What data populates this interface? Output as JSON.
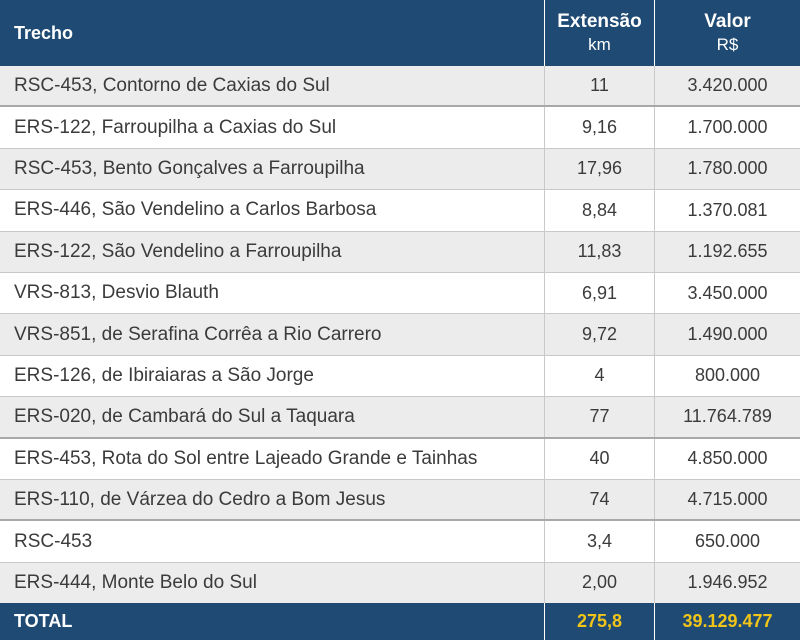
{
  "table": {
    "headers": {
      "trecho": "Trecho",
      "extensao": "Extensão",
      "extensao_unit": "km",
      "valor": "Valor",
      "valor_unit": "R$"
    },
    "rows": [
      {
        "trecho": "RSC-453, Contorno de Caxias do Sul",
        "extensao": "11",
        "valor": "3.420.000"
      },
      {
        "trecho": "ERS-122, Farroupilha a Caxias do Sul",
        "extensao": "9,16",
        "valor": "1.700.000"
      },
      {
        "trecho": "RSC-453, Bento Gonçalves a Farroupilha",
        "extensao": "17,96",
        "valor": "1.780.000"
      },
      {
        "trecho": "ERS-446, São Vendelino a Carlos Barbosa",
        "extensao": "8,84",
        "valor": "1.370.081"
      },
      {
        "trecho": "ERS-122, São Vendelino a Farroupilha",
        "extensao": "11,83",
        "valor": "1.192.655"
      },
      {
        "trecho": "VRS-813, Desvio Blauth",
        "extensao": "6,91",
        "valor": "3.450.000"
      },
      {
        "trecho": "VRS-851, de Serafina Corrêa a Rio Carrero",
        "extensao": "9,72",
        "valor": "1.490.000"
      },
      {
        "trecho": "ERS-126, de Ibiraiaras a São Jorge",
        "extensao": "4",
        "valor": "800.000"
      },
      {
        "trecho": "ERS-020, de Cambará do Sul a Taquara",
        "extensao": "77",
        "valor": "11.764.789"
      },
      {
        "trecho": "ERS-453, Rota do Sol entre Lajeado Grande e Tainhas",
        "extensao": "40",
        "valor": "4.850.000"
      },
      {
        "trecho": "ERS-110, de Várzea do Cedro a Bom Jesus",
        "extensao": "74",
        "valor": "4.715.000"
      },
      {
        "trecho": "RSC-453",
        "extensao": "3,4",
        "valor": "650.000"
      },
      {
        "trecho": "ERS-444, Monte Belo do Sul",
        "extensao": "2,00",
        "valor": "1.946.952"
      }
    ],
    "total": {
      "label": "TOTAL",
      "extensao": "275,8",
      "valor": "39.129.477"
    },
    "colors": {
      "header_bg": "#1e4a73",
      "total_value": "#f0c419",
      "row_alt_bg": "#ececec"
    }
  }
}
